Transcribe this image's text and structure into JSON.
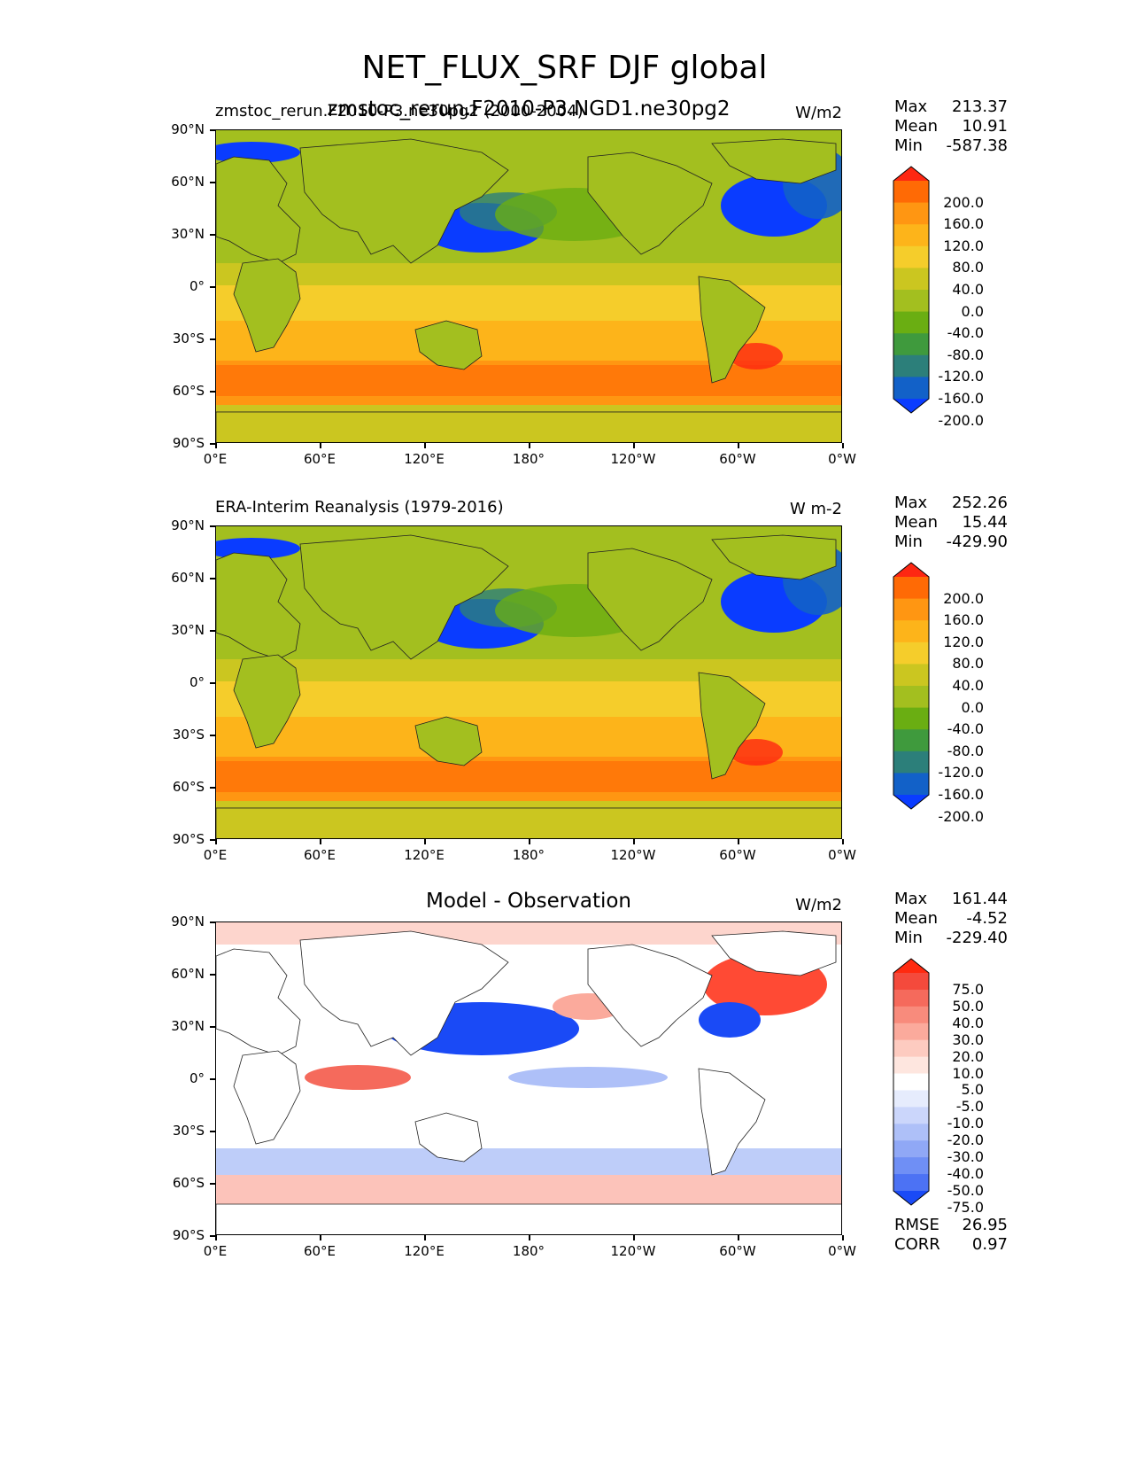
{
  "figure": {
    "title": "NET_FLUX_SRF DJF global",
    "longitude_ticks": [
      "0°E",
      "60°E",
      "120°E",
      "180°",
      "120°W",
      "60°W",
      "0°W"
    ],
    "latitude_ticks": [
      "90°N",
      "60°N",
      "30°N",
      "0°",
      "30°S",
      "60°S",
      "90°S"
    ]
  },
  "panels": [
    {
      "left_title": "zmstoc_rerun.F2010-P3.ne30pg2 (2000-2004)",
      "center_title": "zmstoc_rerun.F2010-P3.NGD1.ne30pg2",
      "units": "W/m2",
      "stats": [
        {
          "label": "Max",
          "value": "213.37"
        },
        {
          "label": "Mean",
          "value": "10.91"
        },
        {
          "label": "Min",
          "value": "-587.38"
        }
      ],
      "colorbar_labels": [
        "200.0",
        "160.0",
        "120.0",
        "80.0",
        "40.0",
        "0.0",
        "-40.0",
        "-80.0",
        "-120.0",
        "-160.0",
        "-200.0"
      ],
      "colors": [
        "#fe2712",
        "#ff6a05",
        "#ff9612",
        "#fdb41a",
        "#f5cd2b",
        "#cbc620",
        "#a3bf1f",
        "#6aae12",
        "#3f9a3d",
        "#2c7f7a",
        "#1261c8",
        "#0a3cff"
      ]
    },
    {
      "left_title": "ERA-Interim Reanalysis (1979-2016)",
      "center_title": "",
      "units": "W m-2",
      "stats": [
        {
          "label": "Max",
          "value": "252.26"
        },
        {
          "label": "Mean",
          "value": "15.44"
        },
        {
          "label": "Min",
          "value": "-429.90"
        }
      ],
      "colorbar_labels": [
        "200.0",
        "160.0",
        "120.0",
        "80.0",
        "40.0",
        "0.0",
        "-40.0",
        "-80.0",
        "-120.0",
        "-160.0",
        "-200.0"
      ],
      "colors": [
        "#fe2712",
        "#ff6a05",
        "#ff9612",
        "#fdb41a",
        "#f5cd2b",
        "#cbc620",
        "#a3bf1f",
        "#6aae12",
        "#3f9a3d",
        "#2c7f7a",
        "#1261c8",
        "#0a3cff"
      ]
    },
    {
      "left_title": "",
      "center_title": "Model - Observation",
      "units": "W/m2",
      "stats": [
        {
          "label": "Max",
          "value": "161.44"
        },
        {
          "label": "Mean",
          "value": "-4.52"
        },
        {
          "label": "Min",
          "value": "-229.40"
        }
      ],
      "extra_stats": [
        {
          "label": "RMSE",
          "value": "26.95"
        },
        {
          "label": "CORR",
          "value": "0.97"
        }
      ],
      "colorbar_labels": [
        "75.0",
        "50.0",
        "40.0",
        "30.0",
        "20.0",
        "10.0",
        "5.0",
        "-5.0",
        "-10.0",
        "-20.0",
        "-30.0",
        "-40.0",
        "-50.0",
        "-75.0"
      ],
      "colors": [
        "#ff2a10",
        "#f44a3c",
        "#f56a5c",
        "#f88b7c",
        "#fbaa9c",
        "#fdcbc0",
        "#fee6df",
        "#ffffff",
        "#e6ecfd",
        "#cbd6fb",
        "#aec0f8",
        "#90a8f6",
        "#6f8ff5",
        "#4c72f4",
        "#1a4af6"
      ]
    }
  ]
}
